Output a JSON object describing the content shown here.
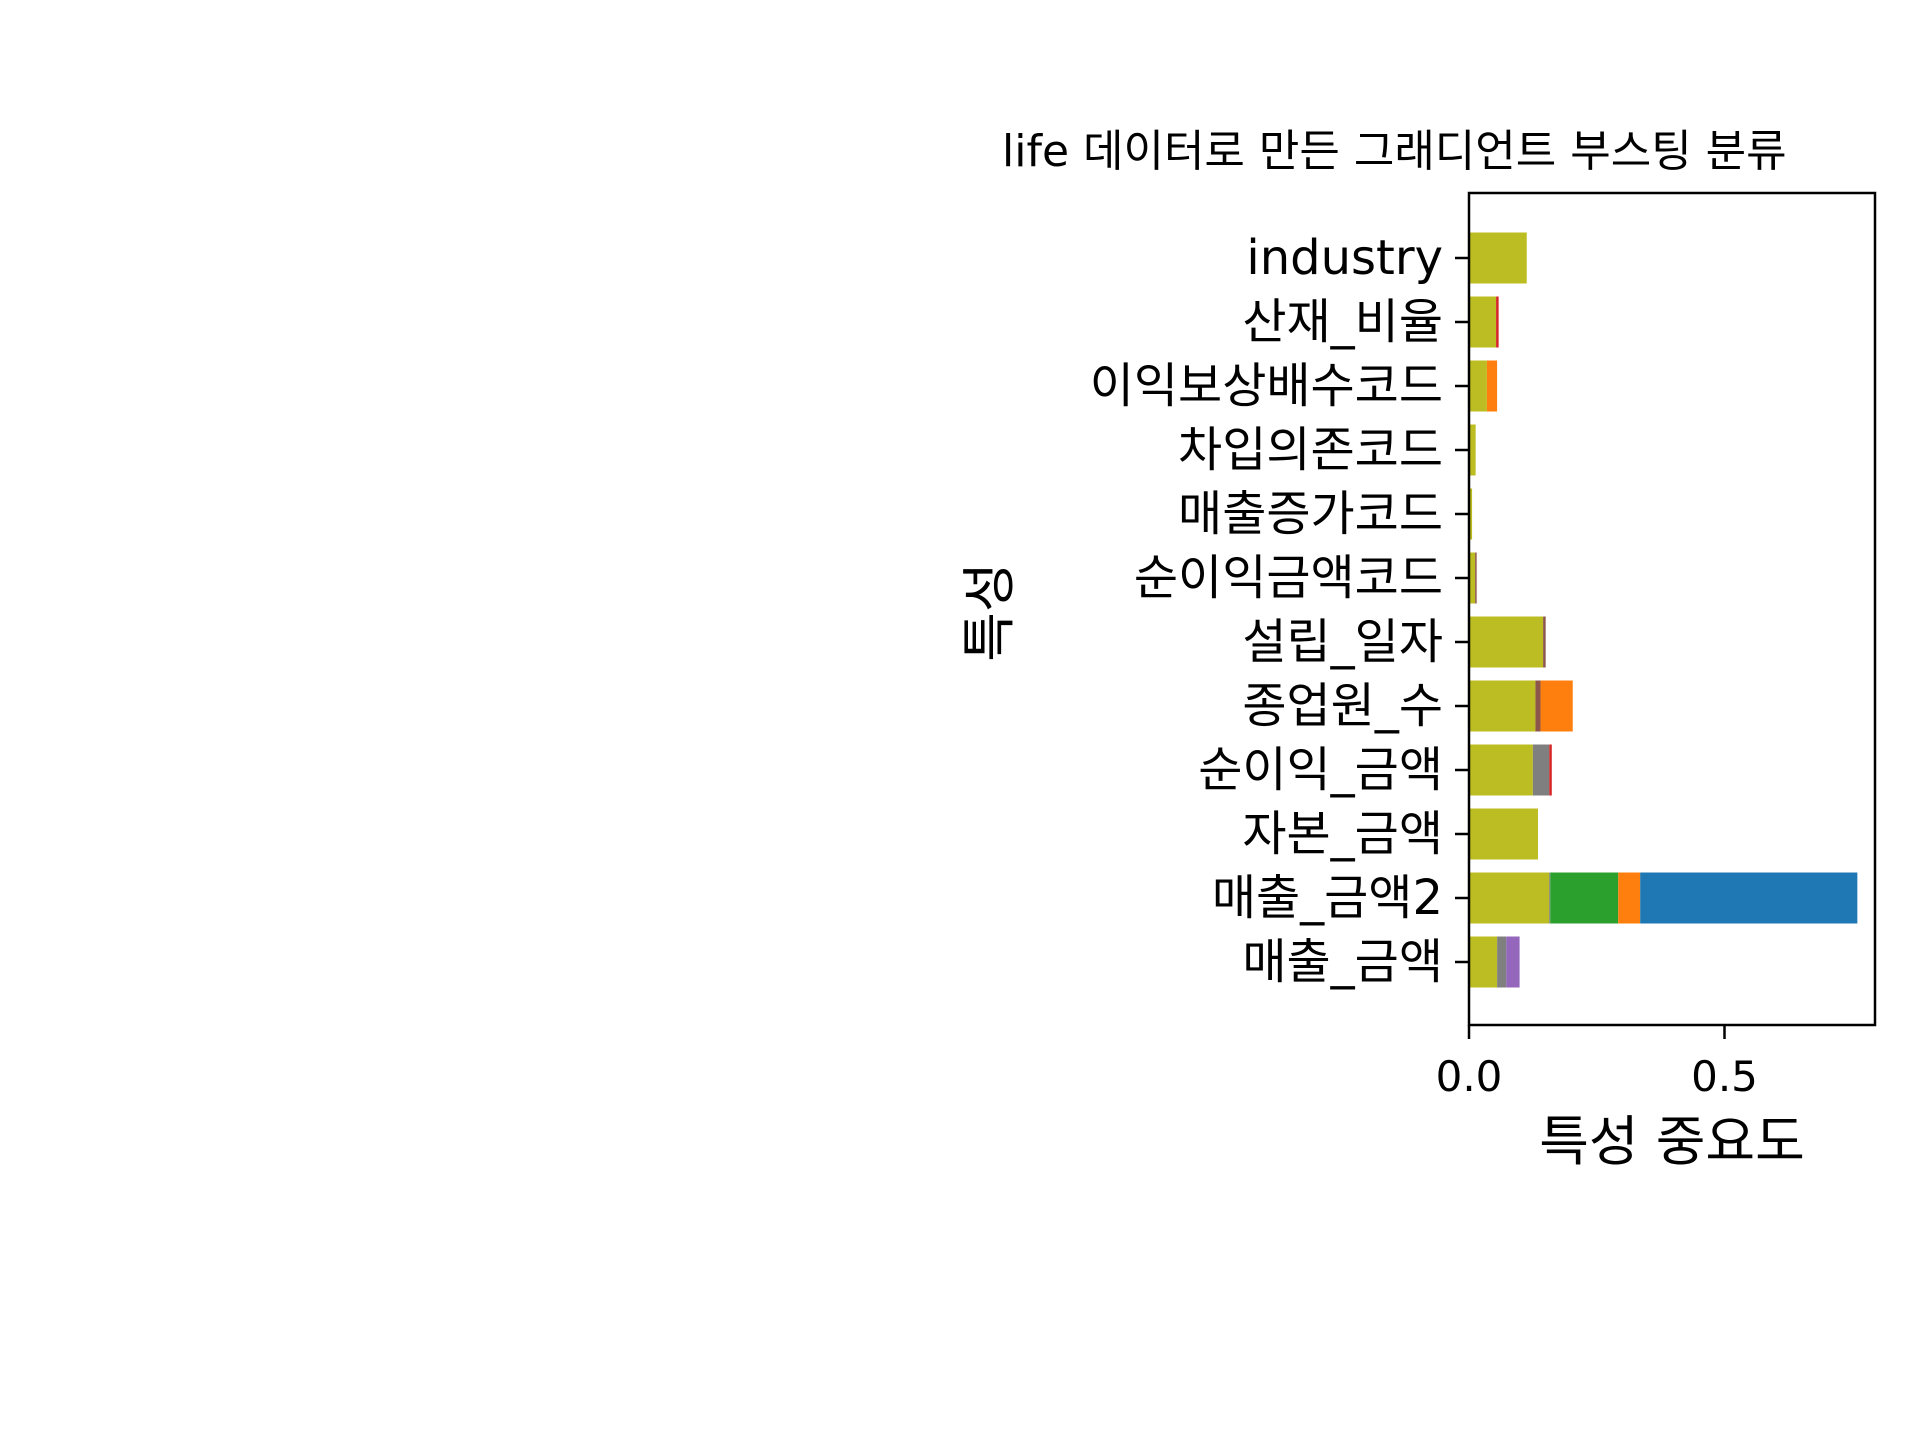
{
  "chart_data": {
    "type": "bar",
    "orientation": "horizontal",
    "stacked": true,
    "title": "life 데이터로 만든 그래디언트 부스팅 분류",
    "xlabel": "특성 중요도",
    "ylabel": "특성",
    "xlim": [
      0,
      0.8
    ],
    "xticks": [
      "0.0",
      "0.5"
    ],
    "categories": [
      "매출_금액",
      "매출_금액2",
      "자본_금액",
      "순이익_금액",
      "종업원_수",
      "설립_일자",
      "순이익금액코드",
      "매출증가코드",
      "차입의존코드",
      "이익보상배수코드",
      "산재_비율",
      "industry"
    ],
    "grid": false,
    "legend": "none",
    "series": [
      {
        "color": "#bcbd22",
        "values": [
          0.055,
          0.157,
          0.135,
          0.125,
          0.13,
          0.145,
          0.012,
          0.006,
          0.013,
          0.035,
          0.053,
          0.113
        ]
      },
      {
        "color": "#7f7f7f",
        "values": [
          0.018,
          0.002,
          0.0,
          0.032,
          0.0,
          0.0,
          0.0,
          0.0,
          0.0,
          0.0,
          0.0,
          0.0
        ]
      },
      {
        "color": "#8c564b",
        "values": [
          0.0,
          0.0,
          0.0,
          0.0,
          0.01,
          0.005,
          0.003,
          0.0,
          0.0,
          0.0,
          0.0,
          0.0
        ]
      },
      {
        "color": "#9467bd",
        "values": [
          0.026,
          0.0,
          0.0,
          0.0,
          0.0,
          0.0,
          0.0,
          0.0,
          0.0,
          0.0,
          0.0,
          0.0
        ]
      },
      {
        "color": "#d62728",
        "values": [
          0.0,
          0.0,
          0.0,
          0.005,
          0.0,
          0.0,
          0.0,
          0.0,
          0.0,
          0.0,
          0.005,
          0.0
        ]
      },
      {
        "color": "#2ca02c",
        "values": [
          0.0,
          0.133,
          0.0,
          0.0,
          0.0,
          0.0,
          0.0,
          0.0,
          0.0,
          0.0,
          0.0,
          0.0
        ]
      },
      {
        "color": "#ff7f0e",
        "values": [
          0.0,
          0.043,
          0.0,
          0.0,
          0.063,
          0.0,
          0.0,
          0.0,
          0.0,
          0.02,
          0.0,
          0.0
        ]
      },
      {
        "color": "#1f77b4",
        "values": [
          0.0,
          0.425,
          0.0,
          0.0,
          0.0,
          0.0,
          0.0,
          0.0,
          0.0,
          0.0,
          0.0,
          0.0
        ]
      }
    ]
  }
}
